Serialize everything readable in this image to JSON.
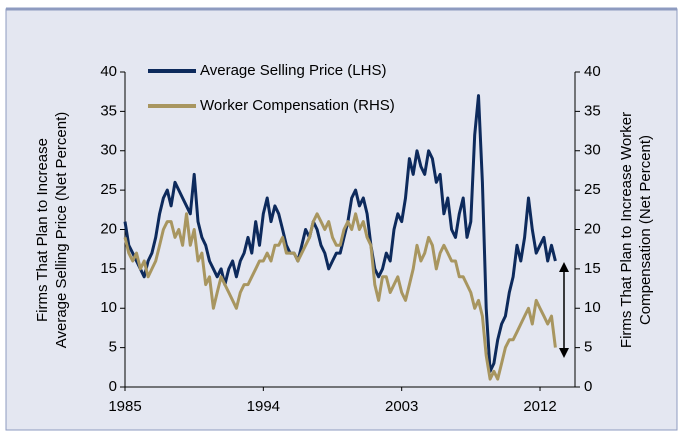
{
  "chart_data": {
    "type": "line",
    "y_label": [
      "Firms That Plan to Increase",
      "Average Selling Price (Net Percent)"
    ],
    "y2_label": [
      "Firms That Plan to Increase Worker",
      "Compensation (Net Percent)"
    ],
    "x": [
      1985,
      1985.25,
      1985.5,
      1985.75,
      1986,
      1986.25,
      1986.5,
      1986.75,
      1987,
      1987.25,
      1987.5,
      1987.75,
      1988,
      1988.25,
      1988.5,
      1988.75,
      1989,
      1989.25,
      1989.5,
      1989.75,
      1990,
      1990.25,
      1990.5,
      1990.75,
      1991,
      1991.25,
      1991.5,
      1991.75,
      1992,
      1992.25,
      1992.5,
      1992.75,
      1993,
      1993.25,
      1993.5,
      1993.75,
      1994,
      1994.25,
      1994.5,
      1994.75,
      1995,
      1995.25,
      1995.5,
      1995.75,
      1996,
      1996.25,
      1996.5,
      1996.75,
      1997,
      1997.25,
      1997.5,
      1997.75,
      1998,
      1998.25,
      1998.5,
      1998.75,
      1999,
      1999.25,
      1999.5,
      1999.75,
      2000,
      2000.25,
      2000.5,
      2000.75,
      2001,
      2001.25,
      2001.5,
      2001.75,
      2002,
      2002.25,
      2002.5,
      2002.75,
      2003,
      2003.25,
      2003.5,
      2003.75,
      2004,
      2004.25,
      2004.5,
      2004.75,
      2005,
      2005.25,
      2005.5,
      2005.75,
      2006,
      2006.25,
      2006.5,
      2006.75,
      2007,
      2007.25,
      2007.5,
      2007.75,
      2008,
      2008.25,
      2008.5,
      2008.75,
      2009,
      2009.25,
      2009.5,
      2009.75,
      2010,
      2010.25,
      2010.5,
      2010.75,
      2011,
      2011.25,
      2011.5,
      2011.75,
      2012,
      2012.25,
      2012.5,
      2012.75,
      2013
    ],
    "series": [
      {
        "name": "Average Selling Price (LHS)",
        "color": "#0d2a5c",
        "values": [
          21,
          18,
          17,
          16,
          15,
          14,
          16,
          17,
          19,
          22,
          24,
          25,
          23,
          26,
          25,
          24,
          23,
          22,
          27,
          21,
          19,
          18,
          16,
          15,
          14,
          15,
          13,
          15,
          16,
          14,
          16,
          17,
          19,
          17,
          21,
          18,
          22,
          24,
          21,
          23,
          22,
          20,
          18,
          17,
          17,
          16,
          18,
          20,
          19,
          21,
          20,
          18,
          17,
          15,
          16,
          17,
          17,
          19,
          21,
          24,
          25,
          23,
          24,
          22,
          18,
          15,
          14,
          15,
          17,
          16,
          20,
          22,
          21,
          24,
          29,
          27,
          30,
          28,
          27,
          30,
          29,
          26,
          27,
          22,
          24,
          20,
          19,
          22,
          24,
          19,
          21,
          32,
          37,
          26,
          10,
          2,
          3,
          6,
          8,
          9,
          12,
          14,
          18,
          16,
          19,
          24,
          20,
          17,
          18,
          19,
          16,
          18,
          16
        ]
      },
      {
        "name": "Worker Compensation (RHS)",
        "color": "#a89660",
        "axis": "y2",
        "values": [
          19,
          17,
          16,
          17,
          15,
          16,
          14,
          15,
          16,
          18,
          20,
          21,
          21,
          19,
          20,
          18,
          22,
          18,
          20,
          16,
          17,
          13,
          14,
          10,
          12,
          14,
          13,
          12,
          11,
          10,
          12,
          13,
          13,
          14,
          15,
          16,
          16,
          17,
          16,
          18,
          18,
          19,
          17,
          17,
          17,
          16,
          17,
          18,
          19,
          21,
          22,
          21,
          20,
          21,
          19,
          18,
          18,
          20,
          21,
          20,
          22,
          20,
          21,
          19,
          18,
          13,
          11,
          14,
          14,
          12,
          13,
          14,
          12,
          11,
          13,
          15,
          18,
          16,
          17,
          19,
          18,
          15,
          17,
          18,
          17,
          16,
          16,
          14,
          14,
          13,
          12,
          10,
          11,
          9,
          4,
          1,
          2,
          1,
          3,
          5,
          6,
          6,
          7,
          8,
          9,
          10,
          8,
          11,
          10,
          9,
          8,
          9,
          5
        ]
      }
    ],
    "xlim": [
      1985,
      2013.3
    ],
    "xticks": [
      1985,
      1994,
      2003,
      2012
    ],
    "ylim": [
      0,
      40
    ],
    "yticks": [
      0,
      5,
      10,
      15,
      20,
      25,
      30,
      35,
      40
    ],
    "y2lim": [
      0,
      40
    ],
    "y2ticks": [
      0,
      5,
      10,
      15,
      20,
      25,
      30,
      35,
      40
    ],
    "legend": "top-left"
  }
}
